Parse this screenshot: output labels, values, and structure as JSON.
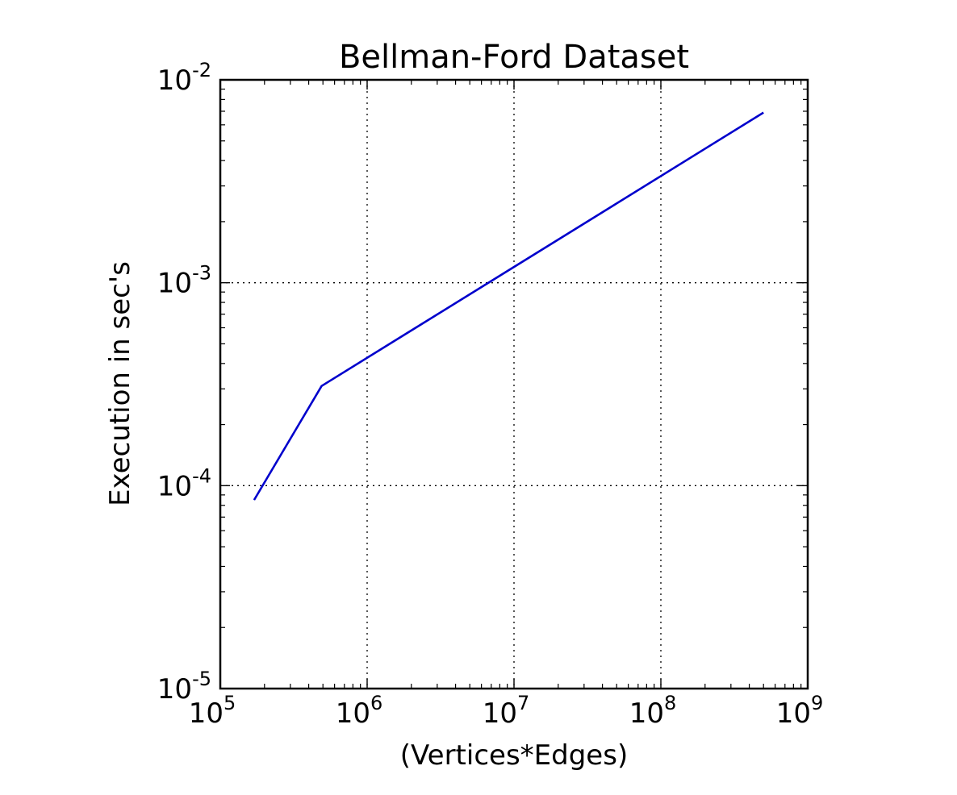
{
  "chart_data": {
    "type": "line",
    "title": "Bellman-Ford Dataset",
    "xlabel": "(Vertices*Edges)",
    "ylabel": "Execution in sec's",
    "xscale": "log",
    "yscale": "log",
    "xlim": [
      100000,
      1000000000
    ],
    "ylim": [
      1e-05,
      0.01
    ],
    "grid": true,
    "x_ticks": [
      {
        "value": 100000,
        "base": "10",
        "exp": "5"
      },
      {
        "value": 1000000,
        "base": "10",
        "exp": "6"
      },
      {
        "value": 10000000,
        "base": "10",
        "exp": "7"
      },
      {
        "value": 100000000,
        "base": "10",
        "exp": "8"
      },
      {
        "value": 1000000000,
        "base": "10",
        "exp": "9"
      }
    ],
    "y_ticks": [
      {
        "value": 1e-05,
        "base": "10",
        "exp": "-5"
      },
      {
        "value": 0.0001,
        "base": "10",
        "exp": "-4"
      },
      {
        "value": 0.001,
        "base": "10",
        "exp": "-3"
      },
      {
        "value": 0.01,
        "base": "10",
        "exp": "-2"
      }
    ],
    "series": [
      {
        "color": "#0000cc",
        "points": [
          {
            "x": 170000,
            "y": 8.5e-05
          },
          {
            "x": 490000,
            "y": 0.00031
          },
          {
            "x": 500000000,
            "y": 0.0069
          }
        ]
      }
    ]
  }
}
